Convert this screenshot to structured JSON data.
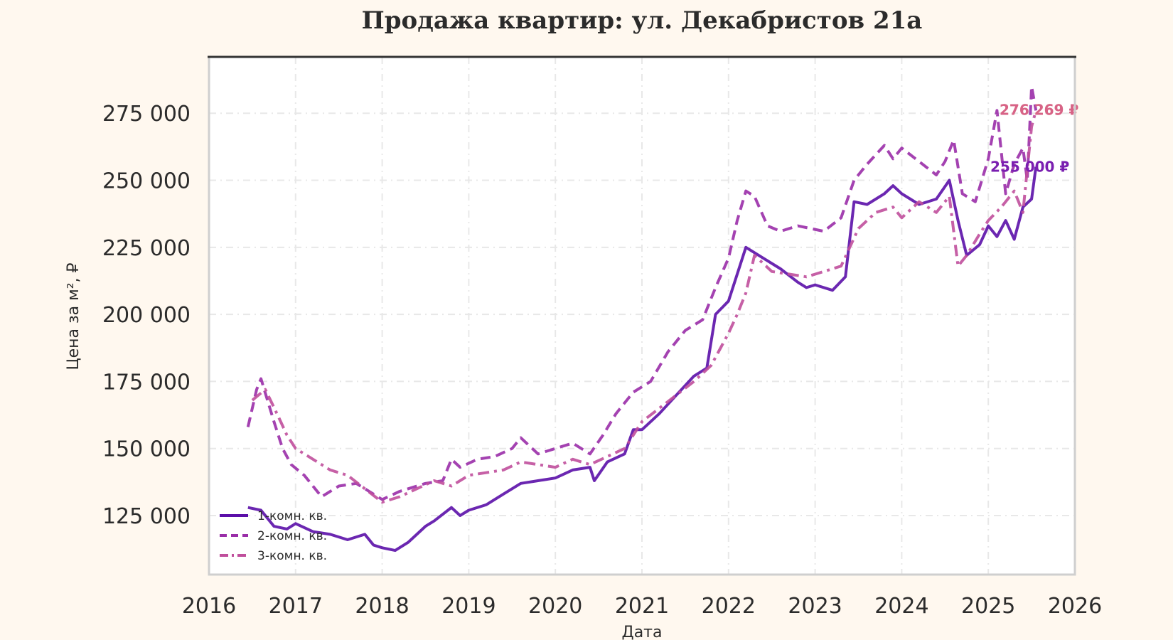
{
  "chart_data": {
    "type": "line",
    "title": "Продажа квартир: ул. Декабристов 21а",
    "xlabel": "Дата",
    "ylabel": "Цена за м², ₽",
    "xlim": [
      2016,
      2026
    ],
    "ylim": [
      103000,
      296000
    ],
    "x_ticks": [
      2016,
      2017,
      2018,
      2019,
      2020,
      2021,
      2022,
      2023,
      2024,
      2025,
      2026
    ],
    "x_tick_labels": [
      "2016",
      "2017",
      "2018",
      "2019",
      "2020",
      "2021",
      "2022",
      "2023",
      "2024",
      "2025",
      "2026"
    ],
    "y_ticks": [
      125000,
      150000,
      175000,
      200000,
      225000,
      250000,
      275000
    ],
    "y_tick_labels": [
      "125 000",
      "150 000",
      "175 000",
      "200 000",
      "225 000",
      "250 000",
      "275 000"
    ],
    "grid": true,
    "legend_position": "bottom-left",
    "series": [
      {
        "name": "1-комн. кв.",
        "color": "#5b0fa8",
        "style": "solid",
        "x": [
          2016.45,
          2016.6,
          2016.75,
          2016.9,
          2017.0,
          2017.2,
          2017.4,
          2017.6,
          2017.8,
          2017.9,
          2018.0,
          2018.15,
          2018.3,
          2018.5,
          2018.6,
          2018.8,
          2018.9,
          2019.0,
          2019.2,
          2019.4,
          2019.5,
          2019.6,
          2019.8,
          2020.0,
          2020.2,
          2020.4,
          2020.45,
          2020.6,
          2020.8,
          2020.9,
          2021.0,
          2021.2,
          2021.4,
          2021.6,
          2021.75,
          2021.85,
          2022.0,
          2022.1,
          2022.2,
          2022.4,
          2022.6,
          2022.8,
          2022.9,
          2023.0,
          2023.2,
          2023.35,
          2023.45,
          2023.6,
          2023.8,
          2023.9,
          2024.0,
          2024.2,
          2024.4,
          2024.55,
          2024.65,
          2024.75,
          2024.9,
          2025.0,
          2025.1,
          2025.2,
          2025.3,
          2025.4,
          2025.5,
          2025.55
        ],
        "y": [
          128000,
          127000,
          121000,
          120000,
          122000,
          119000,
          118000,
          116000,
          118000,
          114000,
          113000,
          112000,
          115000,
          121000,
          123000,
          128000,
          125000,
          127000,
          129000,
          133000,
          135000,
          137000,
          138000,
          139000,
          142000,
          143000,
          138000,
          145000,
          148000,
          157000,
          157000,
          163000,
          170000,
          177000,
          180000,
          200000,
          205000,
          215000,
          225000,
          221000,
          217000,
          212000,
          210000,
          211000,
          209000,
          214000,
          242000,
          241000,
          245000,
          248000,
          245000,
          241000,
          243000,
          250000,
          235000,
          222000,
          226000,
          233000,
          229000,
          235000,
          228000,
          240000,
          243000,
          255000
        ]
      },
      {
        "name": "2-комн. кв.",
        "color": "#9a2ea8",
        "style": "dashed",
        "x": [
          2016.45,
          2016.55,
          2016.6,
          2016.75,
          2016.85,
          2016.95,
          2017.1,
          2017.3,
          2017.5,
          2017.7,
          2017.9,
          2018.0,
          2018.2,
          2018.5,
          2018.7,
          2018.8,
          2018.9,
          2019.1,
          2019.3,
          2019.5,
          2019.6,
          2019.8,
          2020.0,
          2020.2,
          2020.4,
          2020.55,
          2020.7,
          2020.9,
          2021.1,
          2021.3,
          2021.5,
          2021.7,
          2021.85,
          2022.0,
          2022.1,
          2022.2,
          2022.3,
          2022.45,
          2022.6,
          2022.8,
          2022.95,
          2023.1,
          2023.3,
          2023.45,
          2023.6,
          2023.8,
          2023.9,
          2024.0,
          2024.2,
          2024.4,
          2024.5,
          2024.6,
          2024.7,
          2024.85,
          2025.0,
          2025.1,
          2025.2,
          2025.3,
          2025.4,
          2025.45,
          2025.5,
          2025.55
        ],
        "y": [
          158000,
          172000,
          176000,
          160000,
          150000,
          144000,
          140000,
          132000,
          136000,
          137000,
          133000,
          131000,
          134000,
          137000,
          138000,
          146000,
          143000,
          146000,
          147000,
          150000,
          154000,
          148000,
          150000,
          152000,
          148000,
          155000,
          163000,
          171000,
          175000,
          186000,
          194000,
          198000,
          210000,
          221000,
          235000,
          246000,
          244000,
          233000,
          231000,
          233000,
          232000,
          231000,
          236000,
          250000,
          256000,
          263000,
          258000,
          262000,
          257000,
          252000,
          257000,
          265000,
          245000,
          242000,
          258000,
          276000,
          245000,
          256000,
          262000,
          250000,
          285000,
          276000
        ]
      },
      {
        "name": "3-комн. кв.",
        "color": "#c04f9c",
        "style": "dashdot",
        "x": [
          2016.5,
          2016.65,
          2016.8,
          2016.9,
          2017.0,
          2017.2,
          2017.4,
          2017.6,
          2017.8,
          2018.0,
          2018.2,
          2018.4,
          2018.6,
          2018.8,
          2019.0,
          2019.2,
          2019.4,
          2019.6,
          2019.8,
          2020.0,
          2020.2,
          2020.4,
          2020.6,
          2020.8,
          2021.0,
          2021.2,
          2021.4,
          2021.6,
          2021.8,
          2022.0,
          2022.1,
          2022.2,
          2022.3,
          2022.5,
          2022.7,
          2022.9,
          2023.1,
          2023.3,
          2023.5,
          2023.7,
          2023.9,
          2024.0,
          2024.2,
          2024.4,
          2024.55,
          2024.65,
          2024.75,
          2024.9,
          2025.0,
          2025.15,
          2025.3,
          2025.4,
          2025.5,
          2025.55
        ],
        "y": [
          168000,
          172000,
          162000,
          155000,
          150000,
          146000,
          142000,
          140000,
          135000,
          130000,
          132000,
          135000,
          138000,
          136000,
          140000,
          141000,
          142000,
          145000,
          144000,
          143000,
          146000,
          144000,
          147000,
          150000,
          160000,
          165000,
          170000,
          175000,
          181000,
          193000,
          200000,
          208000,
          222000,
          216000,
          215000,
          214000,
          216000,
          218000,
          232000,
          238000,
          240000,
          236000,
          242000,
          238000,
          244000,
          218000,
          222000,
          230000,
          235000,
          240000,
          246000,
          238000,
          270000,
          276000
        ]
      }
    ],
    "end_labels": [
      {
        "series": "1-комн. кв.",
        "text": "255 000 ₽",
        "color": "#7a1fb0",
        "value": 255000
      },
      {
        "series": "2-комн. кв.",
        "text": "276 269 ₽",
        "color": "#e58a63",
        "value": 276269
      },
      {
        "series": "3-комн. кв.",
        "text": "276 269 ₽",
        "color": "#d55a8a",
        "value": 276269
      }
    ]
  }
}
